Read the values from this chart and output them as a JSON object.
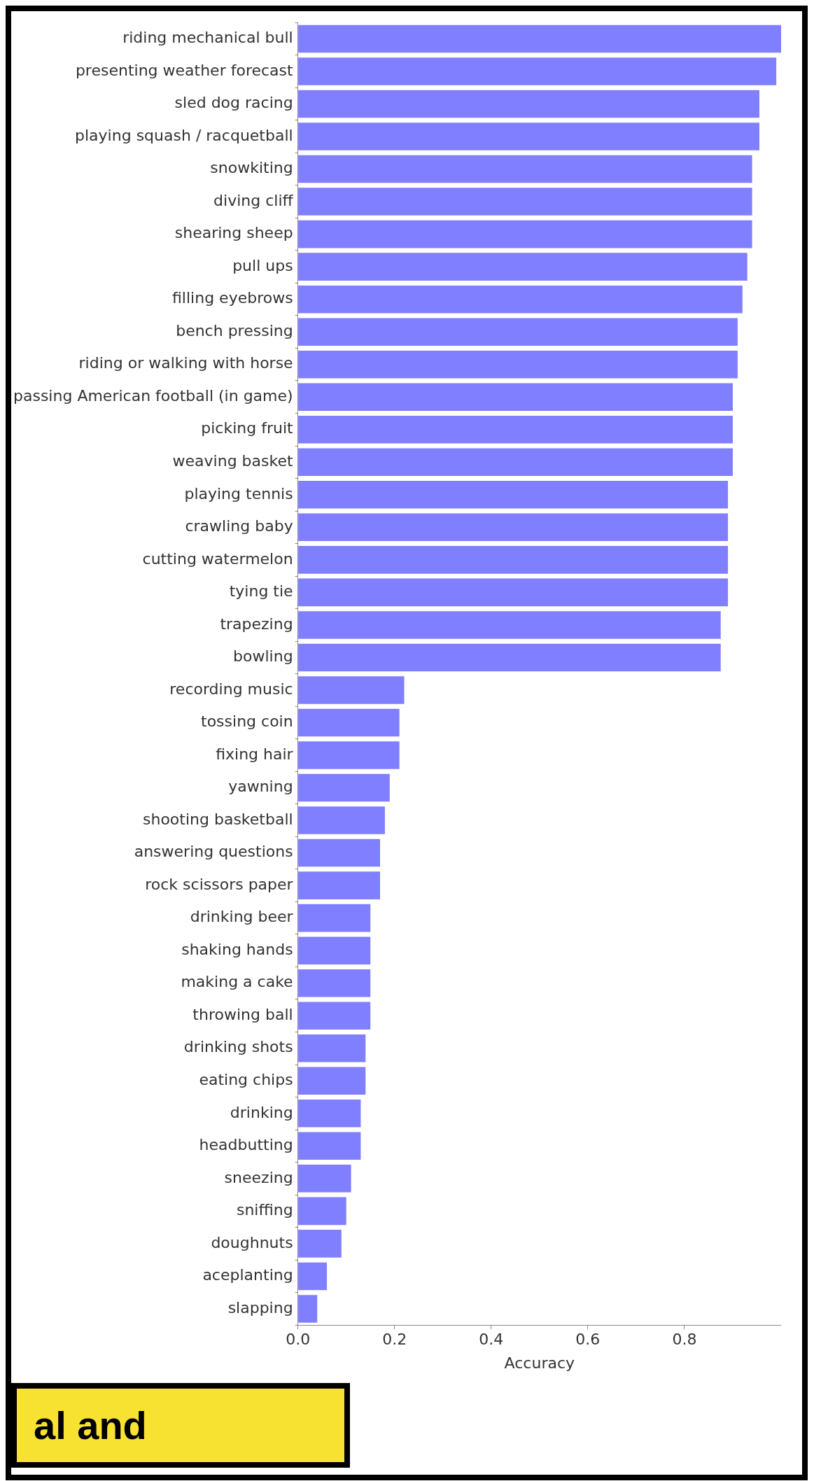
{
  "chart_data": {
    "type": "bar",
    "orientation": "horizontal",
    "xlabel": "Accuracy",
    "color": "#7f7fff",
    "grid": false,
    "legend": false,
    "categories": [
      "riding mechanical bull",
      "presenting weather forecast",
      "sled dog racing",
      "playing squash / racquetball",
      "snowkiting",
      "diving cliff",
      "shearing sheep",
      "pull ups",
      "filling eyebrows",
      "bench pressing",
      "riding or walking with horse",
      "passing American football (in game)",
      "picking fruit",
      "weaving basket",
      "playing tennis",
      "crawling baby",
      "cutting watermelon",
      "tying tie",
      "trapezing",
      "bowling",
      "recording music",
      "tossing coin",
      "fixing hair",
      "yawning",
      "shooting basketball",
      "answering questions",
      "rock scissors paper",
      "drinking beer",
      "shaking hands",
      "making a cake",
      "throwing ball",
      "drinking shots",
      "eating chips",
      "drinking",
      "headbutting",
      "sneezing",
      "sniffing",
      "doughnuts",
      "aceplanting",
      "slapping"
    ],
    "values": [
      1.0,
      0.99,
      0.955,
      0.955,
      0.94,
      0.94,
      0.94,
      0.93,
      0.92,
      0.91,
      0.91,
      0.9,
      0.9,
      0.9,
      0.89,
      0.89,
      0.89,
      0.89,
      0.875,
      0.875,
      0.22,
      0.21,
      0.21,
      0.19,
      0.18,
      0.17,
      0.17,
      0.15,
      0.15,
      0.15,
      0.15,
      0.14,
      0.14,
      0.13,
      0.13,
      0.11,
      0.1,
      0.09,
      0.06,
      0.04
    ],
    "xlim": [
      0,
      1
    ],
    "xticks": [
      {
        "value": 0,
        "label": "0.0"
      },
      {
        "value": 0.2,
        "label": "0.2"
      },
      {
        "value": 0.4,
        "label": "0.4"
      },
      {
        "value": 0.6,
        "label": "0.6"
      },
      {
        "value": 0.8,
        "label": "0.8"
      }
    ],
    "annotations": [
      "al and"
    ]
  }
}
